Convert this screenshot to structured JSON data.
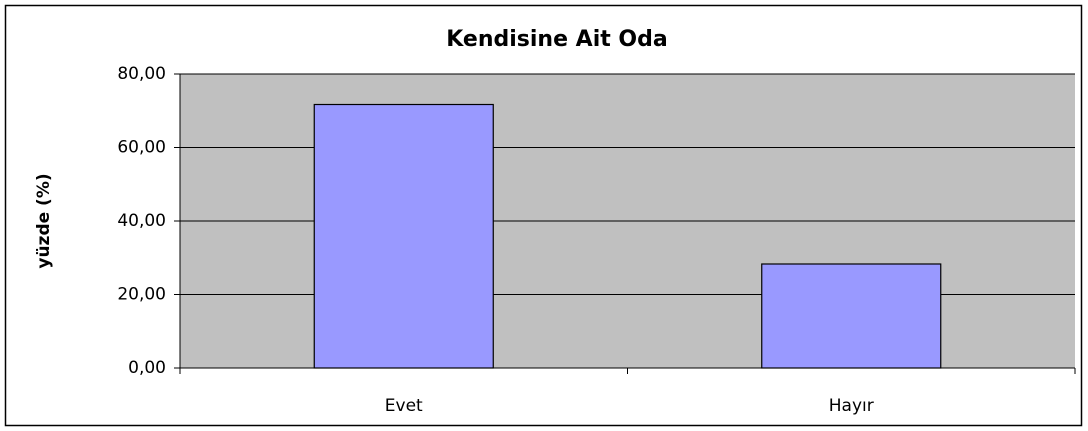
{
  "chart_data": {
    "type": "bar",
    "title": "Kendisine Ait Oda",
    "y_label": "yüzde (%)",
    "categories": [
      "Evet",
      "Hayır"
    ],
    "values": [
      71.7,
      28.3
    ],
    "color": "#9999ff",
    "ylim": [
      0,
      80
    ],
    "yticks": [
      {
        "value": 0,
        "label": "0,00"
      },
      {
        "value": 20,
        "label": "20,00"
      },
      {
        "value": 40,
        "label": "40,00"
      },
      {
        "value": 60,
        "label": "60,00"
      },
      {
        "value": 80,
        "label": "80,00"
      }
    ],
    "grid": true
  }
}
